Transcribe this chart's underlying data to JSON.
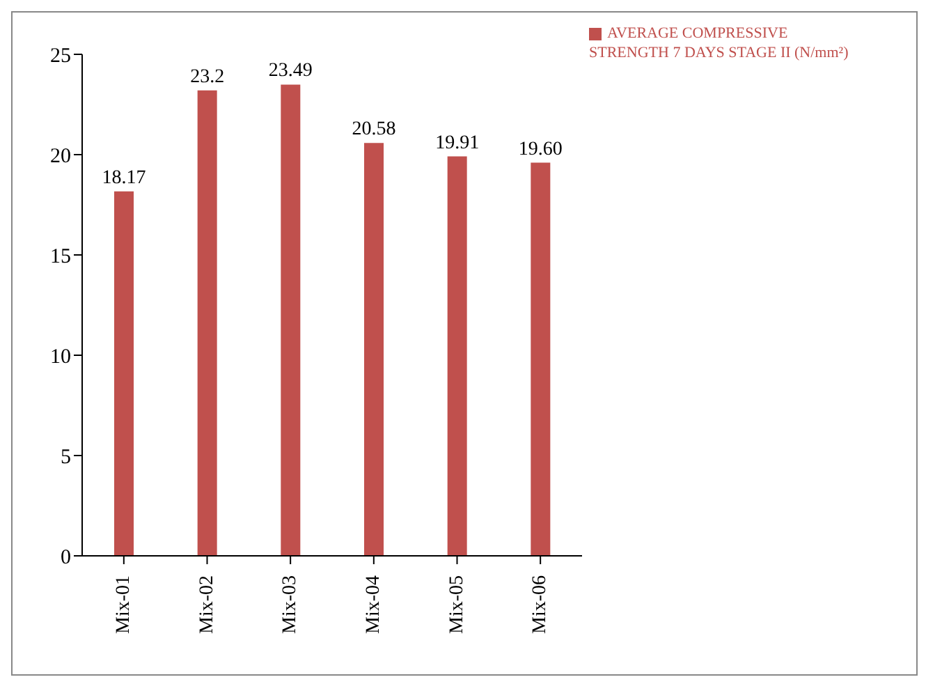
{
  "chart_data": {
    "type": "bar",
    "categories": [
      "Mix-01",
      "Mix-02",
      "Mix-03",
      "Mix-04",
      "Mix-05",
      "Mix-06"
    ],
    "series": [
      {
        "name": "AVERAGE COMPRESSIVE STRENGTH 7 DAYS STAGE II (N/mm²)",
        "color": "#c0504d",
        "values": [
          18.17,
          23.2,
          23.49,
          20.58,
          19.91,
          19.6
        ],
        "value_labels": [
          "18.17",
          "23.2",
          "23.49",
          "20.58",
          "19.91",
          "19.60"
        ]
      }
    ],
    "ylim": [
      0,
      25
    ],
    "yticks": [
      0,
      5,
      10,
      15,
      20,
      25
    ],
    "grid": false,
    "legend": "top right"
  }
}
